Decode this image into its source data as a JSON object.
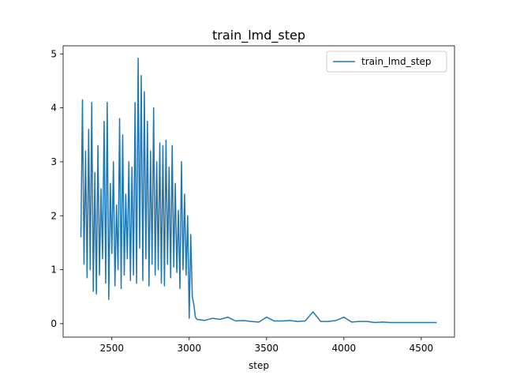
{
  "chart_data": {
    "type": "line",
    "title": "train_lmd_step",
    "xlabel": "step",
    "ylabel": "",
    "xlim": [
      2185,
      4715
    ],
    "ylim": [
      -0.25,
      5.15
    ],
    "xticks": [
      2500,
      3000,
      3500,
      4000,
      4500
    ],
    "yticks": [
      0,
      1,
      2,
      3,
      4,
      5
    ],
    "grid": false,
    "legend_position": "top-right",
    "series": [
      {
        "name": "train_lmd_step",
        "color": "#1f77b4",
        "x": [
          2300,
          2310,
          2320,
          2330,
          2340,
          2350,
          2360,
          2370,
          2380,
          2390,
          2400,
          2410,
          2420,
          2430,
          2440,
          2450,
          2460,
          2470,
          2480,
          2490,
          2500,
          2510,
          2520,
          2530,
          2540,
          2550,
          2560,
          2570,
          2580,
          2590,
          2600,
          2610,
          2620,
          2630,
          2640,
          2650,
          2660,
          2670,
          2680,
          2690,
          2700,
          2710,
          2720,
          2730,
          2740,
          2750,
          2760,
          2770,
          2780,
          2790,
          2800,
          2810,
          2820,
          2830,
          2840,
          2850,
          2860,
          2870,
          2880,
          2890,
          2900,
          2910,
          2920,
          2930,
          2940,
          2950,
          2960,
          2970,
          2980,
          2990,
          3000,
          3010,
          3020,
          3030,
          3040,
          3050,
          3100,
          3150,
          3200,
          3250,
          3300,
          3350,
          3400,
          3450,
          3500,
          3550,
          3600,
          3650,
          3700,
          3750,
          3800,
          3850,
          3900,
          3950,
          4000,
          4050,
          4100,
          4150,
          4200,
          4250,
          4300,
          4350,
          4400,
          4450,
          4500,
          4550,
          4600
        ],
        "values": [
          1.6,
          4.15,
          1.1,
          3.2,
          0.85,
          3.6,
          1.0,
          4.1,
          0.6,
          2.8,
          0.55,
          3.3,
          0.9,
          2.5,
          1.2,
          3.75,
          0.75,
          4.1,
          0.45,
          2.6,
          1.3,
          3.0,
          0.7,
          2.2,
          1.0,
          3.8,
          0.65,
          3.5,
          0.9,
          2.4,
          1.2,
          3.0,
          0.8,
          2.9,
          0.9,
          4.1,
          0.75,
          4.92,
          1.4,
          4.6,
          0.8,
          4.3,
          1.2,
          3.75,
          0.7,
          3.2,
          1.1,
          4.0,
          0.9,
          3.0,
          1.0,
          3.35,
          0.75,
          3.3,
          0.7,
          3.4,
          1.1,
          2.9,
          0.85,
          3.3,
          1.05,
          2.6,
          0.95,
          2.1,
          0.65,
          3.0,
          1.0,
          2.4,
          0.9,
          2.0,
          0.1,
          1.65,
          0.5,
          0.35,
          0.12,
          0.08,
          0.06,
          0.1,
          0.08,
          0.12,
          0.05,
          0.06,
          0.04,
          0.03,
          0.12,
          0.05,
          0.05,
          0.06,
          0.04,
          0.05,
          0.22,
          0.04,
          0.04,
          0.06,
          0.12,
          0.03,
          0.04,
          0.04,
          0.02,
          0.03,
          0.02,
          0.02,
          0.02,
          0.02,
          0.02,
          0.02,
          0.02
        ]
      }
    ]
  }
}
